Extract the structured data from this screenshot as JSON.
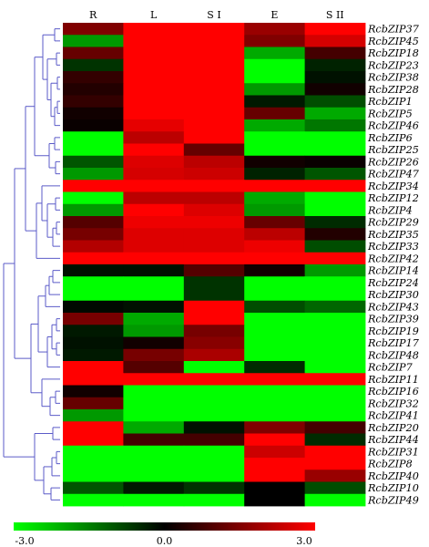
{
  "chart_data": {
    "type": "heatmap",
    "title": "",
    "columns": [
      "R",
      "L",
      "S I",
      "E",
      "S II"
    ],
    "rows": [
      "RcbZIP37",
      "RcbZIP45",
      "RcbZIP18",
      "RcbZIP23",
      "RcbZIP38",
      "RcbZIP28",
      "RcbZIP1",
      "RcbZIP5",
      "RcbZIP46",
      "RcbZIP6",
      "RcbZIP25",
      "RcbZIP26",
      "RcbZIP47",
      "RcbZIP34",
      "RcbZIP12",
      "RcbZIP4",
      "RcbZIP29",
      "RcbZIP35",
      "RcbZIP33",
      "RcbZIP42",
      "RcbZIP14",
      "RcbZIP24",
      "RcbZIP30",
      "RcbZIP43",
      "RcbZIP39",
      "RcbZIP19",
      "RcbZIP17",
      "RcbZIP48",
      "RcbZIP7",
      "RcbZIP11",
      "RcbZIP16",
      "RcbZIP32",
      "RcbZIP41",
      "RcbZIP20",
      "RcbZIP44",
      "RcbZIP31",
      "RcbZIP8",
      "RcbZIP40",
      "RcbZIP10",
      "RcbZIP49"
    ],
    "values": [
      [
        1.5,
        3,
        3,
        1.8,
        3
      ],
      [
        -1.8,
        3,
        3,
        1.5,
        2.5
      ],
      [
        1.2,
        3,
        3,
        -2,
        0.8
      ],
      [
        -0.6,
        3,
        3,
        -3,
        -0.4
      ],
      [
        0.6,
        3,
        3,
        -3,
        -0.2
      ],
      [
        0.4,
        3,
        3,
        -1.8,
        0.2
      ],
      [
        0.6,
        3,
        3,
        -0.3,
        -0.9
      ],
      [
        0.2,
        3,
        3,
        1.2,
        -2
      ],
      [
        0.1,
        2.7,
        3,
        -2,
        -1.4
      ],
      [
        -3,
        2.2,
        3,
        -3,
        -3
      ],
      [
        -3,
        3,
        1.2,
        -3,
        -3
      ],
      [
        -1,
        2.6,
        2.2,
        0.2,
        0.1
      ],
      [
        -1.8,
        2.5,
        2.4,
        -0.4,
        -1.0
      ],
      [
        3,
        3,
        3,
        3,
        3
      ],
      [
        -3,
        2.2,
        2.2,
        -2,
        -3
      ],
      [
        -1.8,
        3,
        2.6,
        -1.8,
        -3
      ],
      [
        1.0,
        2.8,
        2.8,
        1.2,
        -0.5
      ],
      [
        1.4,
        2.6,
        2.6,
        2.2,
        0.4
      ],
      [
        2.1,
        2.6,
        2.6,
        2.8,
        -0.9
      ],
      [
        3,
        3,
        3,
        3,
        3
      ],
      [
        -0.2,
        -0.2,
        1.0,
        0.2,
        -1.8
      ],
      [
        -3,
        -3,
        -0.6,
        -3,
        -3
      ],
      [
        -3,
        -3,
        -0.6,
        -3,
        -3
      ],
      [
        -0.1,
        -0.2,
        3,
        -0.9,
        -1.2
      ],
      [
        1.4,
        -2,
        3,
        -3,
        -3
      ],
      [
        -0.3,
        -1.8,
        1.4,
        -3,
        -3
      ],
      [
        -0.2,
        0.2,
        1.6,
        -3,
        -3
      ],
      [
        -0.3,
        1.4,
        2.0,
        -3,
        -3
      ],
      [
        3,
        1.0,
        -3,
        -0.5,
        -3
      ],
      [
        3,
        3,
        3,
        3,
        3
      ],
      [
        0.2,
        -3,
        -3,
        -3,
        -3
      ],
      [
        1.2,
        -3,
        -3,
        -3,
        -3
      ],
      [
        -1.8,
        -3,
        -3,
        -3,
        -3
      ],
      [
        3,
        -2,
        -0.2,
        1.5,
        0.8
      ],
      [
        3,
        0.8,
        0.8,
        3,
        -0.5
      ],
      [
        -3,
        -3,
        -3,
        2.4,
        3
      ],
      [
        -3,
        -3,
        -3,
        3,
        3
      ],
      [
        -3,
        -3,
        -3,
        3,
        1.8
      ],
      [
        -1.0,
        -0.3,
        -0.6,
        0.0,
        -0.9
      ],
      [
        -3,
        -3,
        -3,
        0.0,
        -3
      ]
    ],
    "color_scale": {
      "min": -3.0,
      "mid": 0.0,
      "max": 3.0,
      "min_color": "#00ff00",
      "mid_color": "#000000",
      "max_color": "#ff0000",
      "tick_labels": [
        "-3.0",
        "0.0",
        "3.0"
      ]
    },
    "dendrogram": {
      "orientation": "left",
      "color": "#5b5bc8"
    }
  }
}
